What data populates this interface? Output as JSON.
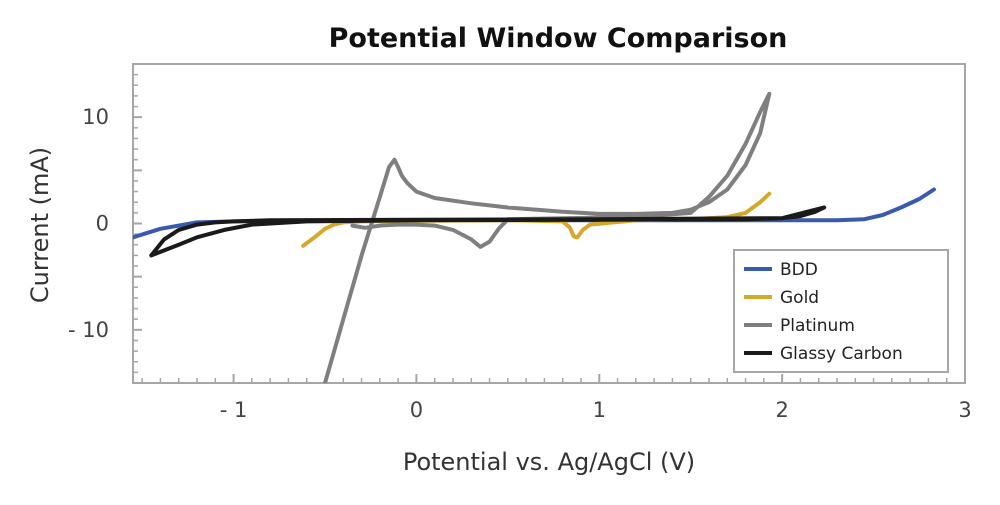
{
  "chart_data": {
    "type": "line",
    "title": "Potential Window Comparison",
    "xlabel": "Potential vs. Ag/AgCl (V)",
    "ylabel": "Current (mA)",
    "xlim": [
      -1.55,
      3.0
    ],
    "ylim": [
      -15,
      15
    ],
    "x_ticks": [
      {
        "value": -1,
        "label": "- 1"
      },
      {
        "value": 0,
        "label": "0"
      },
      {
        "value": 1,
        "label": "1"
      },
      {
        "value": 2,
        "label": "2"
      },
      {
        "value": 3,
        "label": "3"
      }
    ],
    "y_ticks": [
      {
        "value": 10,
        "label": "10"
      },
      {
        "value": 0,
        "label": "0"
      },
      {
        "value": -10,
        "label": "- 10"
      }
    ],
    "grid": false,
    "legend_position": "bottom-right",
    "series": [
      {
        "name": "BDD",
        "color": "#3a5bad",
        "x": [
          -1.55,
          -1.4,
          -1.2,
          -1.0,
          -0.5,
          0.0,
          1.0,
          2.0,
          2.3,
          2.45,
          2.55,
          2.65,
          2.75,
          2.83
        ],
        "y": [
          -1.3,
          -0.5,
          0.1,
          0.2,
          0.25,
          0.3,
          0.3,
          0.3,
          0.3,
          0.4,
          0.8,
          1.5,
          2.3,
          3.2
        ]
      },
      {
        "name": "Gold",
        "color": "#d4a82a",
        "x": [
          -0.62,
          -0.55,
          -0.5,
          -0.45,
          -0.4,
          -0.3,
          0.0,
          0.5,
          0.8,
          0.84,
          0.86,
          0.88,
          0.91,
          0.95,
          1.2,
          1.5,
          1.7,
          1.8,
          1.88,
          1.93
        ],
        "y": [
          -2.1,
          -1.2,
          -0.5,
          -0.1,
          0.1,
          0.2,
          0.25,
          0.3,
          0.2,
          -0.4,
          -1.2,
          -1.3,
          -0.6,
          -0.1,
          0.3,
          0.4,
          0.6,
          1.0,
          2.0,
          2.8
        ]
      },
      {
        "name": "Platinum",
        "color": "#7f7f7f",
        "x": [
          -0.5,
          -0.4,
          -0.3,
          -0.2,
          -0.15,
          -0.12,
          -0.1,
          -0.08,
          -0.05,
          0.0,
          0.1,
          0.3,
          0.5,
          0.8,
          1.0,
          1.2,
          1.4,
          1.5,
          1.6,
          1.7,
          1.8,
          1.88,
          1.93,
          1.88,
          1.8,
          1.7,
          1.6,
          1.5,
          1.2,
          0.8,
          0.5,
          0.45,
          0.4,
          0.35,
          0.3,
          0.2,
          0.1,
          0.0,
          -0.1,
          -0.2,
          -0.28,
          -0.35
        ],
        "y": [
          -15,
          -9,
          -3,
          2.5,
          5.3,
          6.0,
          5.3,
          4.5,
          3.8,
          3.0,
          2.4,
          1.9,
          1.5,
          1.1,
          0.9,
          0.9,
          1.0,
          1.3,
          2.0,
          3.2,
          5.5,
          8.5,
          12.2,
          10.5,
          7.5,
          4.5,
          2.5,
          1.0,
          0.6,
          0.5,
          0.4,
          -0.5,
          -1.7,
          -2.2,
          -1.5,
          -0.6,
          -0.2,
          -0.1,
          -0.1,
          -0.2,
          -0.4,
          -0.2
        ]
      },
      {
        "name": "Glassy Carbon",
        "color": "#1a1a1a",
        "x": [
          -1.45,
          -1.3,
          -1.2,
          -1.05,
          -0.9,
          -0.6,
          0.0,
          1.0,
          1.8,
          2.0,
          2.1,
          2.18,
          2.23,
          2.0,
          1.0,
          0.0,
          -0.8,
          -1.0,
          -1.1,
          -1.2,
          -1.3,
          -1.38,
          -1.45
        ],
        "y": [
          -3.0,
          -2.0,
          -1.3,
          -0.6,
          -0.1,
          0.2,
          0.3,
          0.35,
          0.4,
          0.5,
          0.7,
          1.1,
          1.5,
          0.5,
          0.4,
          0.35,
          0.3,
          0.2,
          0.1,
          -0.1,
          -0.6,
          -1.5,
          -3.0
        ]
      }
    ]
  }
}
